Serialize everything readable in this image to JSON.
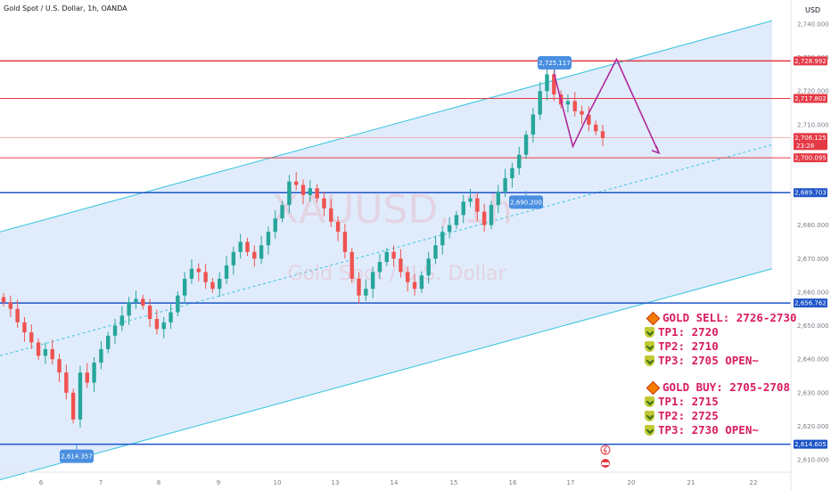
{
  "header": {
    "symbol_title": "Gold Spot / U.S. Dollar, 1h, OANDA",
    "currency": "USD"
  },
  "watermark": {
    "ticker": "XAUUSD, 1h",
    "name": "Gold Spot / U.S. Dollar"
  },
  "colors": {
    "up_candle": "#26a69a",
    "down_candle": "#ef5350",
    "channel_fill": "#dbe9fb",
    "channel_line": "#38c5dd",
    "resistance": "#e53946",
    "support": "#1e54c8",
    "projection": "#b0289c",
    "label_bg": "#4a8fe0"
  },
  "chart_data": {
    "type": "candlestick",
    "y_axis": {
      "range": [
        2605,
        2745
      ],
      "ticks": [
        "2,740.000",
        "2,730.000",
        "2,720.000",
        "2,710.000",
        "2,680.000",
        "2,670.000",
        "2,660.000",
        "2,650.000",
        "2,640.000",
        "2,630.000",
        "2,620.000",
        "2,610.000"
      ]
    },
    "x_axis": {
      "ticks": [
        "6",
        "7",
        "8",
        "9",
        "10",
        "13",
        "14",
        "15",
        "16",
        "17",
        "20",
        "21",
        "22"
      ]
    },
    "price_levels": [
      {
        "label": "2,728.992",
        "value": 2728.992,
        "kind": "resistance"
      },
      {
        "label": "2,717.802",
        "value": 2717.802,
        "kind": "resistance"
      },
      {
        "label": "2,706.125",
        "value": 2706.125,
        "kind": "current",
        "countdown": "23:28"
      },
      {
        "label": "2,700.095",
        "value": 2700.095,
        "kind": "resistance"
      },
      {
        "label": "2,689.703",
        "value": 2689.703,
        "kind": "support"
      },
      {
        "label": "2,656.762",
        "value": 2656.762,
        "kind": "support"
      },
      {
        "label": "2,614.605",
        "value": 2614.605,
        "kind": "support"
      }
    ],
    "callouts": [
      {
        "label": "2,725.117",
        "value": 2725.117,
        "kind": "high"
      },
      {
        "label": "2,690.200",
        "value": 2690.2,
        "kind": "low"
      },
      {
        "label": "2,614.357",
        "value": 2614.357,
        "kind": "low"
      }
    ],
    "channel": {
      "upper_start": 2678,
      "upper_end": 2741,
      "lower_start": 2604,
      "lower_end": 2667,
      "mid_start": 2641,
      "mid_end": 2704
    },
    "price_path": [
      2657,
      2655,
      2651,
      2648,
      2645,
      2641,
      2643,
      2640,
      2636,
      2630,
      2622,
      2636,
      2633,
      2639,
      2643,
      2647,
      2650,
      2653,
      2657,
      2658,
      2656,
      2652,
      2649,
      2651,
      2654,
      2659,
      2664,
      2667,
      2666,
      2663,
      2661,
      2664,
      2668,
      2672,
      2675,
      2672,
      2670,
      2674,
      2678,
      2682,
      2686,
      2693,
      2692,
      2689,
      2691,
      2688,
      2685,
      2681,
      2678,
      2672,
      2664,
      2659,
      2661,
      2666,
      2669,
      2672,
      2670,
      2666,
      2663,
      2661,
      2665,
      2670,
      2674,
      2678,
      2680,
      2683,
      2687,
      2688,
      2684,
      2680,
      2686,
      2690,
      2694,
      2697,
      2701,
      2707,
      2713,
      2720,
      2725,
      2719,
      2716,
      2717,
      2714,
      2713,
      2710,
      2708,
      2706
    ],
    "projection": [
      {
        "x_pct": 0,
        "y": 2725.117
      },
      {
        "x_pct": 0.42,
        "y": 2703.5
      },
      {
        "x_pct": 0.78,
        "y": 2713.5
      },
      {
        "x_pct": 1.4,
        "y": 2729.5
      },
      {
        "x_pct": 2.35,
        "y": 2701.5
      }
    ]
  },
  "trade_plan": {
    "sell": {
      "title": "GOLD SELL: 2726-2730",
      "tps": [
        "TP1: 2720",
        "TP2: 2710",
        "TP3: 2705 OPEN~"
      ]
    },
    "buy": {
      "title": "GOLD BUY: 2705-2708",
      "tps": [
        "TP1: 2715",
        "TP2: 2725",
        "TP3: 2730 OPEN~"
      ]
    }
  }
}
